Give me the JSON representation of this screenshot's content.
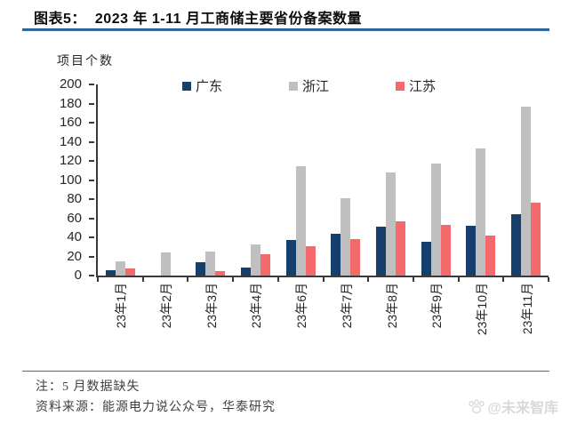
{
  "header": {
    "figure_label": "图表5：",
    "title": "2023 年 1-11 月工商储主要省份备案数量"
  },
  "chart_data": {
    "type": "bar",
    "title": "2023 年 1-11 月工商储主要省份备案数量",
    "ylabel": "项目个数",
    "xlabel": "",
    "ylim": [
      0,
      200
    ],
    "y_ticks": [
      0,
      20,
      40,
      60,
      80,
      100,
      120,
      140,
      160,
      180,
      200
    ],
    "grid": false,
    "legend_position": "top",
    "categories": [
      "23年1月",
      "23年2月",
      "23年3月",
      "23年4月",
      "23年6月",
      "23年7月",
      "23年8月",
      "23年9月",
      "23年10月",
      "23年11月"
    ],
    "series": [
      {
        "name": "广东",
        "color": "#173F6C",
        "values": [
          6,
          0,
          14,
          8,
          37,
          44,
          51,
          35,
          52,
          64
        ]
      },
      {
        "name": "浙江",
        "color": "#BFBFBF",
        "values": [
          15,
          24,
          25,
          33,
          114,
          81,
          108,
          117,
          133,
          177
        ]
      },
      {
        "name": "江苏",
        "color": "#F4696B",
        "values": [
          7,
          0,
          5,
          22,
          31,
          38,
          57,
          53,
          42,
          76
        ]
      }
    ]
  },
  "footer": {
    "note": "注：5 月数据缺失",
    "source": "资料来源：能源电力说公众号，华泰研究",
    "watermark": "@未来智库"
  },
  "colors": {
    "accent_line": "#2E74B5",
    "axis": "#3a3a3a",
    "watermark": "#d9d9d9"
  }
}
